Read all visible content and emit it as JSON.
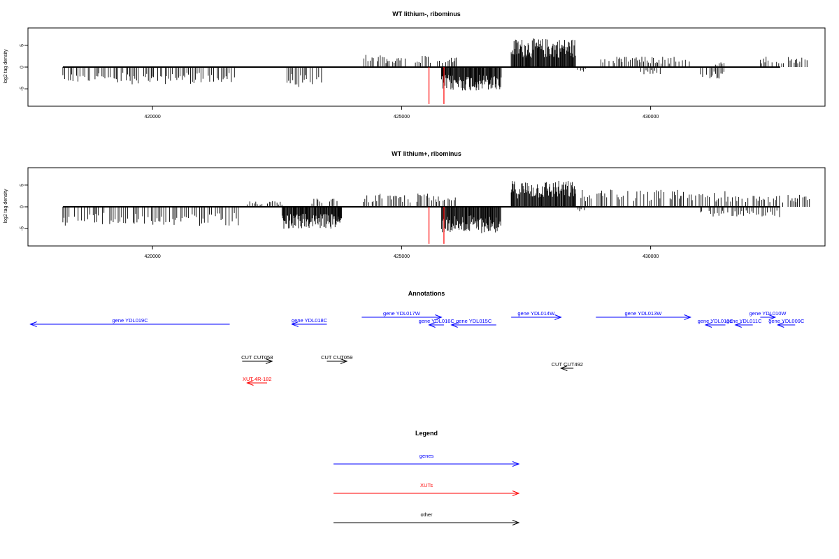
{
  "chart_data": [
    {
      "type": "bar",
      "title": "WT lithium-, ribominus",
      "ylabel": "log2 tag density",
      "xlim": [
        417500,
        433500
      ],
      "ylim": [
        -9,
        9
      ],
      "xticks": [
        420000,
        425000,
        430000
      ],
      "xtick_labels": [
        "420000",
        "425000",
        "430000"
      ],
      "yticks": [
        5,
        0,
        -5
      ],
      "ytick_labels": [
        "5",
        "0",
        "-5"
      ],
      "baseline_range": [
        418200,
        432600
      ],
      "series": [
        {
          "strand": "minus",
          "segments": [
            [
              418200,
              419550,
              3.2
            ],
            [
              419550,
              421650,
              3.6
            ],
            [
              422700,
              423400,
              4.2
            ],
            [
              425800,
              427000,
              5.0
            ],
            [
              428500,
              428700,
              1.0
            ],
            [
              429800,
              430200,
              1.5
            ],
            [
              431000,
              431500,
              2.5
            ]
          ]
        },
        {
          "strand": "plus",
          "segments": [
            [
              424200,
              425700,
              2.6
            ],
            [
              425700,
              426100,
              2.0
            ],
            [
              427200,
              428500,
              6.0
            ],
            [
              429000,
              430900,
              2.2
            ],
            [
              431300,
              431500,
              1.0
            ],
            [
              432200,
              433200,
              2.3
            ]
          ]
        }
      ],
      "highlights": [
        {
          "x": 425550,
          "y": -8.5,
          "color": "#ff0000"
        },
        {
          "x": 425850,
          "y": -8.5,
          "color": "#ff0000"
        }
      ]
    },
    {
      "type": "bar",
      "title": "WT lithium+, ribominus",
      "ylabel": "log2 tag density",
      "xlim": [
        417500,
        433500
      ],
      "ylim": [
        -9,
        9
      ],
      "xticks": [
        420000,
        425000,
        430000
      ],
      "xtick_labels": [
        "420000",
        "425000",
        "430000"
      ],
      "yticks": [
        5,
        0,
        -5
      ],
      "ytick_labels": [
        "5",
        "0",
        "-5"
      ],
      "baseline_range": [
        418200,
        432600
      ],
      "series": [
        {
          "strand": "minus",
          "segments": [
            [
              418200,
              421750,
              4.0
            ],
            [
              422600,
              423800,
              4.6
            ],
            [
              425800,
              427000,
              5.5
            ],
            [
              428500,
              428700,
              1.2
            ],
            [
              431000,
              432600,
              2.2
            ]
          ]
        },
        {
          "strand": "plus",
          "segments": [
            [
              421900,
              422600,
              1.2
            ],
            [
              423200,
              423800,
              1.8
            ],
            [
              424200,
              425700,
              2.8
            ],
            [
              425700,
              426100,
              2.2
            ],
            [
              427200,
              428500,
              5.5
            ],
            [
              428600,
              430600,
              3.6
            ],
            [
              430600,
              431800,
              3.4
            ],
            [
              431800,
              433200,
              2.6
            ]
          ]
        }
      ],
      "highlights": [
        {
          "x": 425550,
          "y": -8.5,
          "color": "#ff0000"
        },
        {
          "x": 425850,
          "y": -8.5,
          "color": "#ff0000"
        }
      ]
    }
  ],
  "annotations": {
    "title": "Annotations",
    "features": [
      {
        "label": "gene YDL019C",
        "start": 417550,
        "end": 421550,
        "dir": "minus",
        "row": 2,
        "color": "#0000ff"
      },
      {
        "label": "gene YDL018C",
        "start": 422800,
        "end": 423500,
        "dir": "minus",
        "row": 2,
        "color": "#0000ff"
      },
      {
        "label": "gene YDL017W",
        "start": 424200,
        "end": 425800,
        "dir": "plus",
        "row": 0,
        "color": "#0000ff"
      },
      {
        "label": "gene YDL016C",
        "start": 425550,
        "end": 425850,
        "dir": "minus",
        "row": 1,
        "color": "#0000ff"
      },
      {
        "label": "gene YDL015C",
        "start": 426000,
        "end": 426900,
        "dir": "minus",
        "row": 1,
        "color": "#0000ff"
      },
      {
        "label": "gene YDL014W",
        "start": 427200,
        "end": 428200,
        "dir": "plus",
        "row": 0,
        "color": "#0000ff"
      },
      {
        "label": "gene YDL013W",
        "start": 428900,
        "end": 430800,
        "dir": "plus",
        "row": 0,
        "color": "#0000ff"
      },
      {
        "label": "gene YDL012C",
        "start": 431100,
        "end": 431500,
        "dir": "minus",
        "row": 1,
        "color": "#0000ff"
      },
      {
        "label": "gene YDL010W",
        "start": 432200,
        "end": 432500,
        "dir": "plus",
        "row": 0,
        "color": "#0000ff"
      },
      {
        "label": "gene YDL011C",
        "start": 431700,
        "end": 432050,
        "dir": "minus",
        "row": 1,
        "color": "#0000ff"
      },
      {
        "label": "gene YDL009C",
        "start": 432550,
        "end": 432900,
        "dir": "minus",
        "row": 1,
        "color": "#0000ff"
      },
      {
        "label": "CUT CUT058",
        "start": 421800,
        "end": 422400,
        "dir": "plus",
        "row": 3,
        "color": "#000000"
      },
      {
        "label": "CUT CUT059",
        "start": 423500,
        "end": 423900,
        "dir": "plus",
        "row": 3,
        "color": "#000000"
      },
      {
        "label": "CUT CUT492",
        "start": 428200,
        "end": 428450,
        "dir": "minus",
        "row": 4,
        "color": "#000000"
      },
      {
        "label": "XUT 4R-182",
        "start": 421900,
        "end": 422300,
        "dir": "minus",
        "row": 5,
        "color": "#ff0000"
      }
    ]
  },
  "legend": {
    "title": "Legend",
    "items": [
      {
        "label": "genes",
        "color": "#0000ff"
      },
      {
        "label": "XUTs",
        "color": "#ff0000"
      },
      {
        "label": "other",
        "color": "#000000"
      }
    ]
  }
}
